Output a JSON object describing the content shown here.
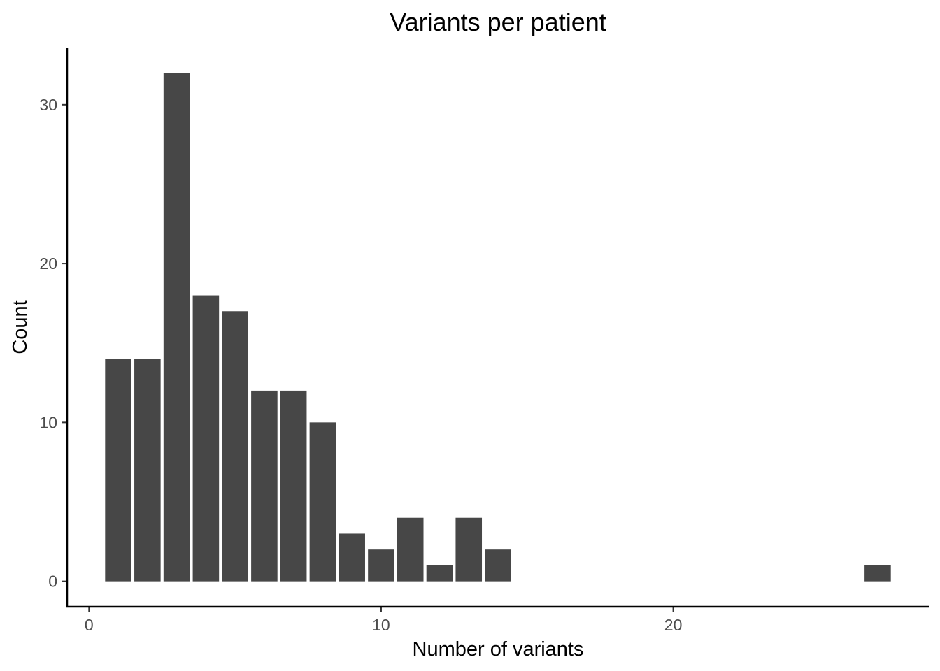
{
  "chart_data": {
    "type": "bar",
    "title": "Variants per patient",
    "xlabel": "Number of variants",
    "ylabel": "Count",
    "x": [
      1,
      2,
      3,
      4,
      5,
      6,
      7,
      8,
      9,
      10,
      11,
      12,
      13,
      14,
      27
    ],
    "values": [
      14,
      14,
      32,
      18,
      17,
      12,
      12,
      10,
      3,
      2,
      4,
      1,
      4,
      2,
      1
    ],
    "xlim": [
      -0.75,
      28.75
    ],
    "ylim": [
      -1.6,
      33.6
    ],
    "xticks": [
      0,
      10,
      20
    ],
    "yticks": [
      0,
      10,
      20,
      30
    ],
    "bar_width": 0.9,
    "bar_color": "#474747",
    "grid": false
  }
}
